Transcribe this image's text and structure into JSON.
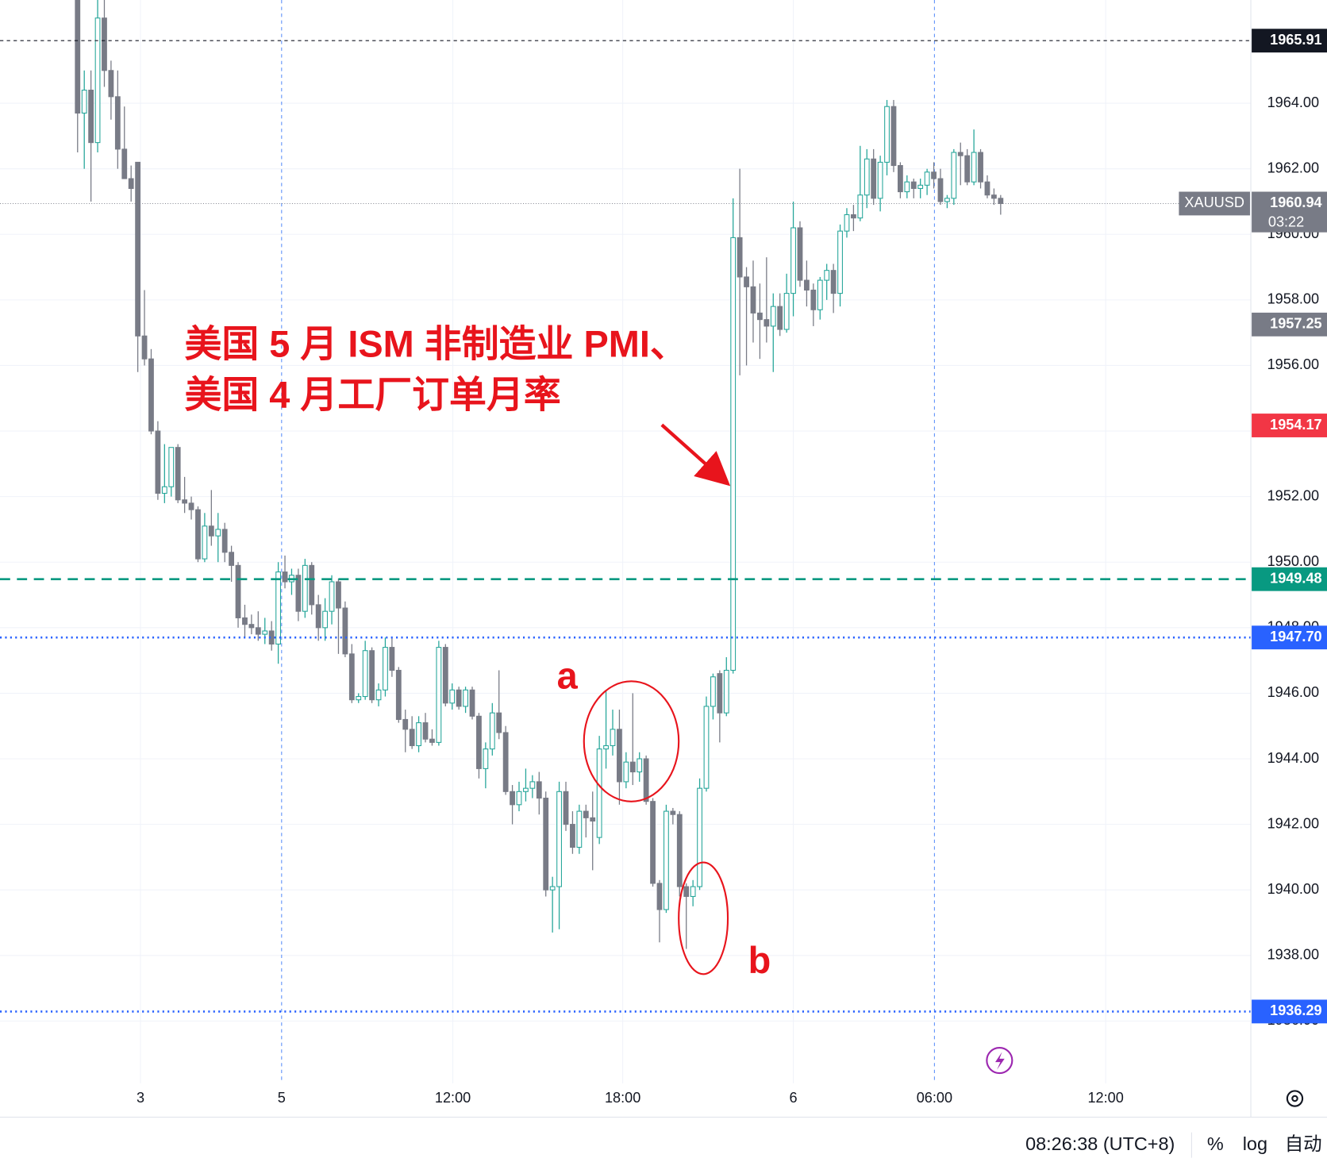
{
  "chart_data": {
    "type": "candlestick",
    "symbol": "XAUUSD",
    "open": [
      1967.5,
      1963.7,
      1964.4,
      1962.8,
      1966.6,
      1965,
      1964.2,
      1962.6,
      1961.7,
      1962.2,
      1956.9,
      1956.2,
      1954,
      1952.1,
      1952.3,
      1953.5,
      1951.9,
      1951.8,
      1951.6,
      1950.1,
      1951.1,
      1950.8,
      1951,
      1950.3,
      1949.9,
      1948.3,
      1948.1,
      1948,
      1947.8,
      1947.9,
      1947.5,
      1949.7,
      1949.4,
      1949.6,
      1948.5,
      1949.9,
      1948.7,
      1948,
      1948.5,
      1949.4,
      1948.6,
      1947.2,
      1945.8,
      1945.9,
      1947.3,
      1945.8,
      1946.1,
      1947.4,
      1946.7,
      1945.2,
      1944.9,
      1944.4,
      1945.1,
      1944.6,
      1944.5,
      1947.4,
      1945.7,
      1946.1,
      1945.6,
      1946.1,
      1945.3,
      1943.7,
      1944.3,
      1945.4,
      1944.8,
      1943,
      1942.6,
      1943,
      1943.1,
      1943.3,
      1942.8,
      1940,
      1940.1,
      1943,
      1942,
      1941.3,
      1942.4,
      1942.2,
      1941.6,
      1944.3,
      1944.4,
      1944.9,
      1943.3,
      1943.9,
      1943.6,
      1944,
      1942.7,
      1940.2,
      1939.4,
      1942.4,
      1942.3,
      1940.1,
      1939.8,
      1940.1,
      1943.1,
      1945.6,
      1946.6,
      1945.4,
      1946.7,
      1959.9,
      1958.7,
      1958.4,
      1957.6,
      1957.4,
      1957.2,
      1957.8,
      1957.1,
      1958.2,
      1960.2,
      1958.6,
      1958.3,
      1957.7,
      1958.6,
      1958.9,
      1958.2,
      1960.1,
      1960.6,
      1960.5,
      1961.2,
      1962.3,
      1961.1,
      1962.2,
      1963.9,
      1962.1,
      1961.3,
      1961.6,
      1961.4,
      1961.5,
      1961.9,
      1961.7,
      1961,
      1961.1,
      1962.5,
      1962.4,
      1961.6,
      1962.5,
      1961.6,
      1961.2,
      1961.1
    ],
    "high": [
      1968,
      1965,
      1965,
      1967.9,
      1967.5,
      1965.3,
      1965,
      1963.9,
      1962.1,
      1962.2,
      1958.3,
      1956.5,
      1954.3,
      1953.6,
      1953.5,
      1953.6,
      1952.6,
      1952,
      1951.7,
      1951.5,
      1952.2,
      1951.5,
      1951.2,
      1950.5,
      1950,
      1948.7,
      1948.4,
      1948.5,
      1948.3,
      1948.2,
      1950,
      1950.2,
      1949.8,
      1949.8,
      1950.1,
      1950,
      1949,
      1948.9,
      1949.6,
      1949.5,
      1948.8,
      1947.5,
      1946,
      1947.6,
      1947.4,
      1946.3,
      1947.7,
      1947.7,
      1946.8,
      1945.5,
      1945.3,
      1945.3,
      1945.4,
      1944.9,
      1947.6,
      1947.5,
      1946.3,
      1946.2,
      1946.2,
      1946.2,
      1945.4,
      1944.5,
      1945.7,
      1946.7,
      1945,
      1943.2,
      1943.3,
      1943.7,
      1943.5,
      1943.6,
      1943,
      1940.4,
      1943.3,
      1943.3,
      1942.4,
      1942.6,
      1942.6,
      1943,
      1944.7,
      1946.1,
      1945.5,
      1945.5,
      1944.2,
      1946,
      1944.2,
      1944.1,
      1942.8,
      1940.3,
      1942.6,
      1942.5,
      1942.4,
      1940.2,
      1940.3,
      1943.4,
      1945.9,
      1946.6,
      1946.7,
      1947.1,
      1961.1,
      1962,
      1959,
      1959.2,
      1958.5,
      1959.3,
      1958.2,
      1958.2,
      1958.8,
      1961,
      1960.4,
      1959.2,
      1958.5,
      1958.7,
      1959.1,
      1959.1,
      1960.3,
      1960.8,
      1960.9,
      1962.7,
      1962.6,
      1962.6,
      1962.4,
      1964.1,
      1964.1,
      1962.2,
      1961.8,
      1961.7,
      1961.7,
      1962,
      1962.2,
      1962,
      1961.2,
      1962.6,
      1962.8,
      1962.6,
      1963.2,
      1962.6,
      1961.8,
      1961.4,
      1961.2
    ],
    "low": [
      1962.5,
      1962,
      1961,
      1962.5,
      1964.5,
      1963.5,
      1962,
      1961.7,
      1961,
      1955.8,
      1956,
      1953.9,
      1951.9,
      1951.8,
      1952,
      1951.8,
      1951.5,
      1951.3,
      1950,
      1950,
      1950.5,
      1950,
      1950,
      1949.4,
      1948,
      1947.7,
      1947.8,
      1947.6,
      1947.5,
      1947.3,
      1946.9,
      1949.2,
      1949,
      1948.2,
      1948.3,
      1948.4,
      1947.6,
      1947.6,
      1948.1,
      1947.2,
      1947.1,
      1945.7,
      1945.7,
      1945.8,
      1945.7,
      1945.6,
      1945.9,
      1946.5,
      1945.1,
      1944.2,
      1944.3,
      1944.2,
      1944.5,
      1944.4,
      1944.4,
      1945.6,
      1945.5,
      1945.5,
      1945.4,
      1945.2,
      1943.4,
      1943.1,
      1944.1,
      1944.6,
      1942.9,
      1942,
      1942.4,
      1942.7,
      1942.8,
      1942.3,
      1939.8,
      1938.7,
      1938.8,
      1941.8,
      1941.1,
      1941.1,
      1941.6,
      1940.6,
      1941.4,
      1943.7,
      1944.1,
      1942.6,
      1943.1,
      1943.2,
      1943.3,
      1942.6,
      1940.1,
      1938.4,
      1939.3,
      1942,
      1939.8,
      1938.2,
      1939.5,
      1940,
      1943,
      1945.2,
      1944.5,
      1945.3,
      1946.6,
      1955.7,
      1956,
      1956.7,
      1956.2,
      1956.7,
      1955.8,
      1956.9,
      1957,
      1957.5,
      1958.4,
      1957.8,
      1957.2,
      1957.4,
      1958,
      1957.6,
      1957.8,
      1959.9,
      1960.1,
      1960.4,
      1960.8,
      1960.9,
      1960.7,
      1961.8,
      1961.9,
      1961.1,
      1961.1,
      1961.1,
      1961.1,
      1961.2,
      1961.4,
      1960.9,
      1960.8,
      1960.9,
      1961.5,
      1961.5,
      1961.5,
      1961.4,
      1961.1,
      1960.9,
      1960.6
    ],
    "close": [
      1963.7,
      1964.4,
      1962.8,
      1966.6,
      1965,
      1964.2,
      1962.6,
      1961.7,
      1961.4,
      1956.9,
      1956.2,
      1954,
      1952.1,
      1952.3,
      1953.5,
      1951.9,
      1951.8,
      1951.6,
      1950.1,
      1951.1,
      1950.8,
      1951,
      1950.3,
      1949.9,
      1948.3,
      1948.1,
      1948,
      1947.8,
      1947.9,
      1947.5,
      1949.7,
      1949.4,
      1949.6,
      1948.5,
      1949.9,
      1948.7,
      1948,
      1948.5,
      1949.4,
      1948.6,
      1947.2,
      1945.8,
      1945.9,
      1947.3,
      1945.8,
      1946.1,
      1947.4,
      1946.7,
      1945.2,
      1944.9,
      1944.4,
      1945.1,
      1944.6,
      1944.5,
      1947.4,
      1945.7,
      1946.1,
      1945.6,
      1946.1,
      1945.3,
      1943.7,
      1944.3,
      1945.4,
      1944.8,
      1943,
      1942.6,
      1943,
      1943.1,
      1943.3,
      1942.8,
      1940,
      1940.1,
      1943,
      1942,
      1941.3,
      1942.4,
      1942.2,
      1942.1,
      1944.3,
      1944.4,
      1944.9,
      1943.3,
      1943.9,
      1943.6,
      1944,
      1942.7,
      1940.2,
      1939.4,
      1942.4,
      1942.3,
      1940.1,
      1939.8,
      1940.1,
      1943.1,
      1945.6,
      1946.5,
      1945.4,
      1946.7,
      1959.9,
      1958.7,
      1958.4,
      1957.6,
      1957.4,
      1957.2,
      1957.8,
      1957.1,
      1958.2,
      1960.2,
      1958.6,
      1958.3,
      1957.7,
      1958.6,
      1958.9,
      1958.2,
      1960.1,
      1960.6,
      1960.5,
      1961.2,
      1962.3,
      1961.1,
      1962.2,
      1963.9,
      1962.1,
      1961.3,
      1961.6,
      1961.4,
      1961.5,
      1961.9,
      1961.7,
      1961,
      1961.1,
      1962.5,
      1962.4,
      1961.6,
      1962.5,
      1961.6,
      1961.2,
      1961.1,
      1960.94
    ],
    "up_color": "#26a69a",
    "down_color": "#787b86",
    "xlim": [
      -11.6,
      175.4
    ],
    "xticks": [
      {
        "value": 9.4,
        "label": "3"
      },
      {
        "value": 30.5,
        "label": "5"
      },
      {
        "value": 56.1,
        "label": "12:00"
      },
      {
        "value": 81.5,
        "label": "18:00"
      },
      {
        "value": 107,
        "label": "6"
      },
      {
        "value": 128.1,
        "label": "06:00"
      },
      {
        "value": 153.7,
        "label": "12:00"
      }
    ],
    "ylim": [
      1934.1,
      1967.15
    ],
    "yticks": [
      {
        "value": 1936,
        "label": "1936.00"
      },
      {
        "value": 1938,
        "label": "1938.00"
      },
      {
        "value": 1940,
        "label": "1940.00"
      },
      {
        "value": 1942,
        "label": "1942.00"
      },
      {
        "value": 1944,
        "label": "1944.00"
      },
      {
        "value": 1946,
        "label": "1946.00"
      },
      {
        "value": 1948,
        "label": "1948.00"
      },
      {
        "value": 1950,
        "label": "1950.00"
      },
      {
        "value": 1952,
        "label": "1952.00"
      },
      {
        "value": 1954,
        "label": "1954.00"
      },
      {
        "value": 1956,
        "label": "1956.00"
      },
      {
        "value": 1958,
        "label": "1958.00"
      },
      {
        "value": 1960,
        "label": "1960.00"
      },
      {
        "value": 1962,
        "label": "1962.00"
      },
      {
        "value": 1964,
        "label": "1964.00"
      }
    ],
    "price_lines": [
      {
        "price": 1965.91,
        "color": "#131722",
        "line": "dashed"
      },
      {
        "price": 1960.94,
        "color": "#787b86",
        "line": "dotted"
      },
      {
        "price": 1957.25,
        "color": "#787b86",
        "line": "none"
      },
      {
        "price": 1954.17,
        "color": "#f23645",
        "line": "none"
      },
      {
        "price": 1949.48,
        "color": "#089981",
        "line": "dashed-bold"
      },
      {
        "price": {
          "value": 1947.7,
          "label": "1947.70"
        },
        "color": "#2962ff",
        "line": "dotted-bold"
      },
      {
        "price": 1936.29,
        "color": "#2962ff",
        "line": "dotted-bold"
      }
    ],
    "countdown": "03:22",
    "annotations": [
      "美国 5 月 ISM 非制造业 PMI、",
      "美国 4 月工厂订单月率",
      "a",
      "b"
    ]
  },
  "status_bar": {
    "time": "08:26:38 (UTC+8)",
    "percent": "%",
    "log": "log",
    "auto": "自动"
  }
}
